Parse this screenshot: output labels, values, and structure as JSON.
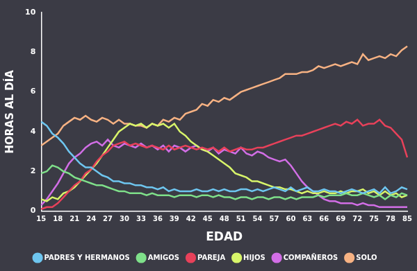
{
  "chart_data": {
    "type": "line",
    "x_label": "EDAD",
    "y_label": "HORAS AL DÍA",
    "categories": [
      15,
      null,
      null,
      18,
      null,
      null,
      21,
      null,
      null,
      24,
      null,
      null,
      27,
      null,
      null,
      30,
      null,
      null,
      33,
      null,
      null,
      36,
      null,
      null,
      39,
      null,
      null,
      42,
      null,
      null,
      45,
      null,
      null,
      48,
      null,
      null,
      51,
      null,
      null,
      54,
      null,
      null,
      57,
      null,
      null,
      60,
      null,
      null,
      63,
      null,
      null,
      66,
      null,
      null,
      69,
      null,
      null,
      72,
      null,
      null,
      75,
      null,
      null,
      78,
      null,
      null,
      85
    ],
    "series": [
      {
        "name": "PADRES Y HERMANOS",
        "color": "#6ec6f0",
        "values": [
          4.5,
          4.3,
          3.9,
          3.7,
          3.4,
          3.0,
          2.7,
          2.4,
          2.2,
          2.2,
          2.0,
          1.8,
          1.7,
          1.5,
          1.5,
          1.4,
          1.4,
          1.3,
          1.3,
          1.2,
          1.2,
          1.1,
          1.2,
          1.0,
          1.1,
          1.0,
          1.0,
          1.0,
          1.1,
          1.0,
          1.0,
          1.1,
          1.0,
          1.1,
          1.0,
          1.0,
          1.1,
          1.1,
          1.0,
          1.1,
          1.0,
          1.1,
          1.2,
          1.1,
          1.0,
          1.2,
          1.0,
          1.1,
          1.2,
          1.0,
          1.0,
          1.1,
          1.0,
          1.0,
          0.9,
          1.0,
          1.1,
          1.0,
          0.9,
          1.0,
          1.1,
          0.9,
          1.2,
          0.9,
          1.0,
          1.2,
          1.1
        ]
      },
      {
        "name": "AMIGOS",
        "color": "#7fe08a",
        "values": [
          1.9,
          2.0,
          2.3,
          2.2,
          2.0,
          1.9,
          1.7,
          1.6,
          1.5,
          1.4,
          1.3,
          1.3,
          1.2,
          1.1,
          1.0,
          1.0,
          0.9,
          0.9,
          0.9,
          0.8,
          0.9,
          0.8,
          0.8,
          0.8,
          0.7,
          0.8,
          0.8,
          0.8,
          0.7,
          0.8,
          0.8,
          0.7,
          0.8,
          0.7,
          0.7,
          0.6,
          0.7,
          0.7,
          0.6,
          0.7,
          0.7,
          0.6,
          0.7,
          0.7,
          0.6,
          0.7,
          0.6,
          0.7,
          0.7,
          0.7,
          0.8,
          0.7,
          0.8,
          0.8,
          0.8,
          0.9,
          0.8,
          0.8,
          0.9,
          0.8,
          0.7,
          0.8,
          0.6,
          0.8,
          0.7,
          0.9,
          0.8
        ]
      },
      {
        "name": "PAREJA",
        "color": "#e8415a",
        "values": [
          0.1,
          0.2,
          0.2,
          0.4,
          0.7,
          1.0,
          1.3,
          1.5,
          1.9,
          2.1,
          2.5,
          2.8,
          3.0,
          3.3,
          3.4,
          3.5,
          3.3,
          3.4,
          3.3,
          3.2,
          3.3,
          3.2,
          3.1,
          3.3,
          3.1,
          3.2,
          3.3,
          3.2,
          3.1,
          3.2,
          3.1,
          3.2,
          3.0,
          3.2,
          3.0,
          3.1,
          3.2,
          3.1,
          3.1,
          3.2,
          3.2,
          3.3,
          3.4,
          3.5,
          3.6,
          3.7,
          3.8,
          3.8,
          3.9,
          4.0,
          4.1,
          4.2,
          4.3,
          4.4,
          4.3,
          4.5,
          4.4,
          4.6,
          4.3,
          4.4,
          4.4,
          4.6,
          4.3,
          4.2,
          3.9,
          3.6,
          2.7
        ]
      },
      {
        "name": "HIJOS",
        "color": "#d8f56a",
        "values": [
          0.6,
          0.5,
          0.7,
          0.6,
          0.9,
          1.0,
          1.2,
          1.5,
          1.8,
          2.1,
          2.4,
          2.8,
          3.2,
          3.6,
          4.0,
          4.2,
          4.4,
          4.3,
          4.4,
          4.2,
          4.4,
          4.3,
          4.4,
          4.2,
          4.4,
          4.0,
          3.8,
          3.5,
          3.3,
          3.1,
          3.0,
          2.8,
          2.6,
          2.4,
          2.2,
          1.9,
          1.8,
          1.7,
          1.5,
          1.5,
          1.4,
          1.3,
          1.2,
          1.2,
          1.1,
          1.1,
          1.0,
          0.9,
          1.0,
          0.9,
          0.9,
          1.0,
          0.9,
          0.9,
          1.0,
          0.9,
          1.0,
          1.0,
          1.1,
          0.9,
          1.0,
          0.8,
          1.0,
          0.8,
          0.9,
          0.7,
          0.8
        ]
      },
      {
        "name": "COMPAÑEROS",
        "color": "#d26ee6",
        "values": [
          0.3,
          0.6,
          1.0,
          1.4,
          1.9,
          2.4,
          2.7,
          2.9,
          3.2,
          3.4,
          3.5,
          3.3,
          3.6,
          3.3,
          3.2,
          3.4,
          3.3,
          3.2,
          3.4,
          3.2,
          3.3,
          3.1,
          3.3,
          3.0,
          3.3,
          3.2,
          3.0,
          3.2,
          3.3,
          3.1,
          3.0,
          3.2,
          2.9,
          3.1,
          3.0,
          2.9,
          3.2,
          2.9,
          2.8,
          3.0,
          2.9,
          2.7,
          2.6,
          2.5,
          2.6,
          2.3,
          1.9,
          1.5,
          1.2,
          1.0,
          0.8,
          0.6,
          0.5,
          0.5,
          0.4,
          0.4,
          0.4,
          0.3,
          0.4,
          0.3,
          0.3,
          0.2,
          0.2,
          0.2,
          0.2,
          0.2,
          0.2
        ]
      },
      {
        "name": "SOLO",
        "color": "#f7b283",
        "values": [
          3.3,
          3.5,
          3.7,
          3.9,
          4.3,
          4.5,
          4.7,
          4.6,
          4.8,
          4.6,
          4.5,
          4.7,
          4.6,
          4.4,
          4.6,
          4.4,
          4.4,
          4.3,
          4.3,
          4.2,
          4.4,
          4.3,
          4.6,
          4.5,
          4.7,
          4.6,
          4.9,
          5.0,
          5.1,
          5.4,
          5.3,
          5.6,
          5.5,
          5.7,
          5.6,
          5.8,
          6.0,
          6.1,
          6.2,
          6.3,
          6.4,
          6.5,
          6.6,
          6.7,
          6.9,
          6.9,
          6.9,
          7.0,
          7.0,
          7.1,
          7.3,
          7.2,
          7.3,
          7.4,
          7.3,
          7.4,
          7.5,
          7.4,
          7.9,
          7.6,
          7.7,
          7.8,
          7.7,
          7.9,
          7.8,
          8.1,
          8.3
        ]
      }
    ],
    "ylim": [
      0,
      10
    ],
    "yticks": [
      0,
      2,
      4,
      6,
      8,
      10
    ],
    "grid": false,
    "legend": "bottom"
  }
}
